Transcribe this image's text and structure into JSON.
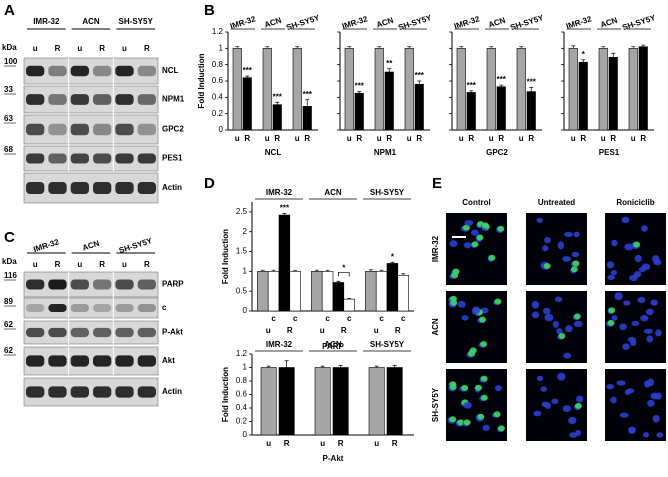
{
  "panel_a": {
    "label": "A",
    "kda": "kDa",
    "cell_lines": [
      "IMR-32",
      "ACN",
      "SH-SY5Y"
    ],
    "lanes": [
      "u",
      "R",
      "u",
      "R",
      "u",
      "R"
    ],
    "bands": [
      {
        "name": "NCL",
        "kda": 100
      },
      {
        "name": "NPM1",
        "kda": 33
      },
      {
        "name": "GPC2",
        "kda": 63
      },
      {
        "name": "PES1",
        "kda": 68
      },
      {
        "name": "Actin"
      }
    ]
  },
  "panel_b": {
    "label": "B"
  },
  "panel_c": {
    "label": "C",
    "kda": "kDa",
    "cell_lines": [
      "IMR-32",
      "ACN",
      "SH-SY5Y"
    ],
    "lanes": [
      "u",
      "R",
      "u",
      "R",
      "u",
      "R"
    ],
    "bands": [
      {
        "name": "PARP",
        "kda": 116
      },
      {
        "name": "c",
        "kda": 89
      },
      {
        "name": "P-Akt",
        "kda": 62
      },
      {
        "name": "Akt",
        "kda": 62
      },
      {
        "name": "Actin"
      }
    ]
  },
  "panel_d": {
    "label": "D"
  },
  "panel_e": {
    "label": "E",
    "columns": [
      "Control",
      "Untreated",
      "Roniciclib"
    ],
    "rows": [
      "IMR-32",
      "ACN",
      "SH-SY5Y"
    ]
  },
  "chart_data": [
    {
      "type": "bar",
      "ylabel": "Fold Induction",
      "xlabel": "NCL",
      "groups": [
        "IMR-32",
        "ACN",
        "SH-SY5Y"
      ],
      "categories": [
        "u",
        "R",
        "u",
        "R",
        "u",
        "R"
      ],
      "values": [
        1,
        0.64,
        1,
        0.31,
        1,
        0.29
      ],
      "errors": [
        0.02,
        0.02,
        0.02,
        0.03,
        0.02,
        0.08
      ],
      "significance": [
        null,
        "***",
        null,
        "***",
        null,
        "***"
      ],
      "colors": [
        "#a6a6a6",
        "#000000",
        "#a6a6a6",
        "#000000",
        "#a6a6a6",
        "#000000"
      ],
      "ylim": [
        0,
        1.2
      ],
      "yticks": [
        0,
        0.2,
        0.4,
        0.6,
        0.8,
        1,
        1.2
      ]
    },
    {
      "type": "bar",
      "xlabel": "NPM1",
      "groups": [
        "IMR-32",
        "ACN",
        "SH-SY5Y"
      ],
      "categories": [
        "u",
        "R",
        "u",
        "R",
        "u",
        "R"
      ],
      "values": [
        1,
        0.45,
        1,
        0.71,
        1,
        0.56
      ],
      "errors": [
        0.02,
        0.02,
        0.02,
        0.04,
        0.02,
        0.04
      ],
      "significance": [
        null,
        "***",
        null,
        "**",
        null,
        "***"
      ],
      "colors": [
        "#a6a6a6",
        "#000000",
        "#a6a6a6",
        "#000000",
        "#a6a6a6",
        "#000000"
      ],
      "ylim": [
        0,
        1.2
      ],
      "yticks": [
        0,
        0.2,
        0.4,
        0.6,
        0.8,
        1,
        1.2
      ]
    },
    {
      "type": "bar",
      "xlabel": "GPC2",
      "groups": [
        "IMR-32",
        "ACN",
        "SH-SY5Y"
      ],
      "categories": [
        "u",
        "R",
        "u",
        "R",
        "u",
        "R"
      ],
      "values": [
        1,
        0.46,
        1,
        0.53,
        1,
        0.47
      ],
      "errors": [
        0.02,
        0.02,
        0.02,
        0.02,
        0.02,
        0.05
      ],
      "significance": [
        null,
        "***",
        null,
        "***",
        null,
        "***"
      ],
      "colors": [
        "#a6a6a6",
        "#000000",
        "#a6a6a6",
        "#000000",
        "#a6a6a6",
        "#000000"
      ],
      "ylim": [
        0,
        1.2
      ],
      "yticks": [
        0,
        0.2,
        0.4,
        0.6,
        0.8,
        1,
        1.2
      ]
    },
    {
      "type": "bar",
      "xlabel": "PES1",
      "groups": [
        "IMR-32",
        "ACN",
        "SH-SY5Y"
      ],
      "categories": [
        "u",
        "R",
        "u",
        "R",
        "u",
        "R"
      ],
      "values": [
        1,
        0.83,
        1,
        0.89,
        1,
        1.02
      ],
      "errors": [
        0.03,
        0.03,
        0.02,
        0.05,
        0.02,
        0.02
      ],
      "significance": [
        null,
        "*",
        null,
        null,
        null,
        null
      ],
      "colors": [
        "#a6a6a6",
        "#000000",
        "#a6a6a6",
        "#000000",
        "#a6a6a6",
        "#000000"
      ],
      "ylim": [
        0,
        1.2
      ],
      "yticks": [
        0,
        0.2,
        0.4,
        0.6,
        0.8,
        1,
        1.2
      ]
    },
    {
      "type": "bar",
      "ylabel": "Fold Induction",
      "xlabel": "PARP",
      "groups": [
        "IMR-32",
        "ACN",
        "SH-SY5Y"
      ],
      "categories": [
        "u",
        "c",
        "R",
        "c",
        "u",
        "c",
        "R",
        "c",
        "u",
        "c",
        "R",
        "c"
      ],
      "values": [
        1,
        1,
        2.42,
        1,
        1,
        1,
        0.72,
        0.3,
        1,
        1,
        1.2,
        0.9
      ],
      "errors": [
        0.03,
        0.03,
        0.04,
        0.02,
        0.03,
        0.03,
        0.03,
        0.02,
        0.04,
        0.03,
        0.03,
        0.04
      ],
      "significance": [
        null,
        null,
        "***",
        null,
        null,
        null,
        null,
        "*",
        null,
        null,
        "*",
        null
      ],
      "brackets": [
        7
      ],
      "colors": [
        "#a6a6a6",
        "#ffffff",
        "#000000",
        "#ffffff",
        "#a6a6a6",
        "#ffffff",
        "#000000",
        "#ffffff",
        "#a6a6a6",
        "#ffffff",
        "#000000",
        "#ffffff"
      ],
      "ylim": [
        0,
        2.75
      ],
      "yticks": [
        0,
        0.5,
        1,
        1.5,
        2,
        2.5
      ]
    },
    {
      "type": "bar",
      "ylabel": "Fold Induction",
      "xlabel": "P-Akt",
      "groups": [
        "IMR-32",
        "ACN",
        "SH-SY5Y"
      ],
      "categories": [
        "u",
        "R",
        "u",
        "R",
        "u",
        "R"
      ],
      "values": [
        1,
        1,
        1,
        1,
        1,
        1
      ],
      "errors": [
        0.02,
        0.1,
        0.02,
        0.03,
        0.02,
        0.03
      ],
      "colors": [
        "#a6a6a6",
        "#000000",
        "#a6a6a6",
        "#000000",
        "#a6a6a6",
        "#000000"
      ],
      "ylim": [
        0,
        1.2
      ],
      "yticks": [
        0,
        0.2,
        0.4,
        0.6,
        0.8,
        1,
        1.2
      ]
    }
  ]
}
